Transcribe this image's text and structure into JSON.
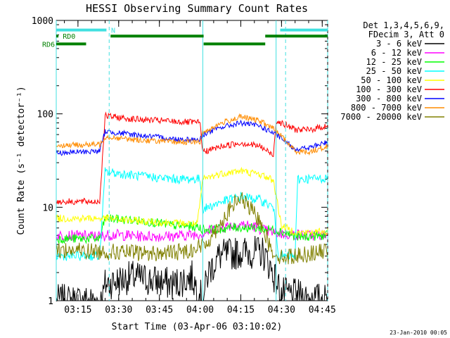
{
  "chart_data": {
    "type": "line",
    "title": "HESSI Observing Summary Count Rates",
    "xlabel": "Start Time (03-Apr-06 03:10:02)",
    "ylabel": "Count Rate (s⁻¹ detector⁻¹)",
    "yscale": "log",
    "ylim": [
      1,
      1000
    ],
    "xlim_minutes": [
      -3,
      97
    ],
    "x_ticks": [
      {
        "min": 5,
        "label": "03:15"
      },
      {
        "min": 20,
        "label": "03:30"
      },
      {
        "min": 35,
        "label": "03:45"
      },
      {
        "min": 50,
        "label": "04:00"
      },
      {
        "min": 65,
        "label": "04:15"
      },
      {
        "min": 80,
        "label": "04:30"
      },
      {
        "min": 95,
        "label": "04:45"
      }
    ],
    "y_ticks": [
      {
        "value": 1,
        "label": "1"
      },
      {
        "value": 10,
        "label": "10"
      },
      {
        "value": 100,
        "label": "100"
      },
      {
        "value": 1000,
        "label": "1000"
      }
    ],
    "legend_header": [
      "Det 1,3,4,5,6,9,",
      "FDecim 3, Att 0"
    ],
    "footer_date": "23-Jan-2010 00:05",
    "flag_labels": {
      "n": "N",
      "rd0": "RD0",
      "rd6": "RD6"
    },
    "flags": [
      {
        "name": "N",
        "color": "#40e0e0",
        "y_value": 790,
        "segments": [
          [
            -3,
            15.5
          ],
          [
            79.5,
            97
          ]
        ]
      },
      {
        "name": "RD0",
        "color": "#008000",
        "y_value": 680,
        "segments": [
          [
            -3,
            -2.2
          ],
          [
            17,
            51.3
          ],
          [
            74,
            97
          ]
        ]
      },
      {
        "name": "RD6",
        "color": "#008000",
        "y_value": 560,
        "segments": [
          [
            -3,
            8
          ],
          [
            51.3,
            74
          ]
        ]
      }
    ],
    "vlines_cyan_dashed_min": [
      16.5,
      81.5,
      97
    ],
    "vlines_cyan_solid_min": [
      -3,
      51,
      78
    ],
    "series": [
      {
        "name": "3 - 6 keV",
        "color": "#000000",
        "points": [
          [
            -3,
            1
          ],
          [
            14,
            1
          ],
          [
            15,
            1.5
          ],
          [
            25,
            1.8
          ],
          [
            40,
            1.5
          ],
          [
            47,
            1.8
          ],
          [
            51,
            1
          ],
          [
            53,
            2
          ],
          [
            57,
            3
          ],
          [
            65,
            3.3
          ],
          [
            73,
            3.3
          ],
          [
            75,
            2.6
          ],
          [
            80,
            1.2
          ],
          [
            97,
            1
          ]
        ]
      },
      {
        "name": "6 - 12 keV",
        "color": "#ff00ff",
        "points": [
          [
            -3,
            5
          ],
          [
            13,
            4.9
          ],
          [
            18,
            5.1
          ],
          [
            28,
            4.9
          ],
          [
            40,
            4.9
          ],
          [
            50,
            5.2
          ],
          [
            55,
            5.8
          ],
          [
            60,
            6.3
          ],
          [
            65,
            6.6
          ],
          [
            70,
            6.2
          ],
          [
            75,
            5.5
          ],
          [
            80,
            5.2
          ],
          [
            90,
            5
          ],
          [
            97,
            5.1
          ]
        ]
      },
      {
        "name": "12 - 25 keV",
        "color": "#00ff00",
        "points": [
          [
            -3,
            4.6
          ],
          [
            13,
            4.6
          ],
          [
            15,
            7.6
          ],
          [
            30,
            7.1
          ],
          [
            40,
            6.4
          ],
          [
            49,
            6.2
          ],
          [
            51,
            5.8
          ],
          [
            56,
            5.8
          ],
          [
            63,
            6.1
          ],
          [
            70,
            6
          ],
          [
            78,
            5.7
          ],
          [
            80,
            5.5
          ],
          [
            86,
            4.8
          ],
          [
            97,
            5
          ]
        ]
      },
      {
        "name": "25 - 50 keV",
        "color": "#00ffff",
        "points": [
          [
            -3,
            3
          ],
          [
            13,
            3
          ],
          [
            15,
            24
          ],
          [
            25,
            22
          ],
          [
            40,
            20
          ],
          [
            50,
            20
          ],
          [
            51,
            9.5
          ],
          [
            58,
            11.5
          ],
          [
            65,
            13
          ],
          [
            72,
            12
          ],
          [
            77,
            10
          ],
          [
            79,
            3
          ],
          [
            85,
            3
          ],
          [
            86,
            20
          ],
          [
            97,
            20.5
          ]
        ]
      },
      {
        "name": "50 - 100 keV",
        "color": "#ffff00",
        "points": [
          [
            -3,
            7.6
          ],
          [
            13,
            7.6
          ],
          [
            15,
            7.6
          ],
          [
            28,
            7.1
          ],
          [
            40,
            6.8
          ],
          [
            49,
            6.6
          ],
          [
            51,
            20
          ],
          [
            58,
            23
          ],
          [
            65,
            24.5
          ],
          [
            72,
            22.5
          ],
          [
            77,
            19.5
          ],
          [
            80,
            6.3
          ],
          [
            86,
            5.3
          ],
          [
            97,
            5.5
          ]
        ]
      },
      {
        "name": "100 - 300 keV",
        "color": "#ff0000",
        "points": [
          [
            -3,
            11.5
          ],
          [
            13,
            11.5
          ],
          [
            15,
            95
          ],
          [
            25,
            88
          ],
          [
            40,
            83
          ],
          [
            50,
            80
          ],
          [
            51,
            39
          ],
          [
            58,
            45
          ],
          [
            65,
            49
          ],
          [
            72,
            45
          ],
          [
            77,
            36
          ],
          [
            78,
            85
          ],
          [
            85,
            68
          ],
          [
            90,
            67
          ],
          [
            97,
            75
          ]
        ]
      },
      {
        "name": "300 - 800 keV",
        "color": "#0000ff",
        "points": [
          [
            -3,
            38
          ],
          [
            13,
            40
          ],
          [
            15,
            65
          ],
          [
            25,
            60
          ],
          [
            40,
            54
          ],
          [
            50,
            53
          ],
          [
            51,
            60
          ],
          [
            58,
            72
          ],
          [
            65,
            80
          ],
          [
            72,
            74
          ],
          [
            78,
            60
          ],
          [
            85,
            42
          ],
          [
            90,
            43
          ],
          [
            97,
            50
          ]
        ]
      },
      {
        "name": "800 - 7000 keV",
        "color": "#ff8c00",
        "points": [
          [
            -3,
            46
          ],
          [
            13,
            47
          ],
          [
            15,
            57
          ],
          [
            25,
            53
          ],
          [
            40,
            50
          ],
          [
            50,
            50
          ],
          [
            51,
            63
          ],
          [
            58,
            80
          ],
          [
            65,
            93
          ],
          [
            72,
            84
          ],
          [
            78,
            67
          ],
          [
            85,
            40
          ],
          [
            90,
            39
          ],
          [
            97,
            45
          ]
        ]
      },
      {
        "name": "7000 - 20000 keV",
        "color": "#808000",
        "points": [
          [
            -3,
            3.5
          ],
          [
            20,
            3.3
          ],
          [
            35,
            3.2
          ],
          [
            45,
            3.4
          ],
          [
            52,
            4
          ],
          [
            58,
            7
          ],
          [
            62,
            10.5
          ],
          [
            65,
            12.5
          ],
          [
            68,
            10
          ],
          [
            73,
            6.5
          ],
          [
            76,
            3.5
          ],
          [
            80,
            2.9
          ],
          [
            97,
            3.4
          ]
        ]
      }
    ]
  }
}
